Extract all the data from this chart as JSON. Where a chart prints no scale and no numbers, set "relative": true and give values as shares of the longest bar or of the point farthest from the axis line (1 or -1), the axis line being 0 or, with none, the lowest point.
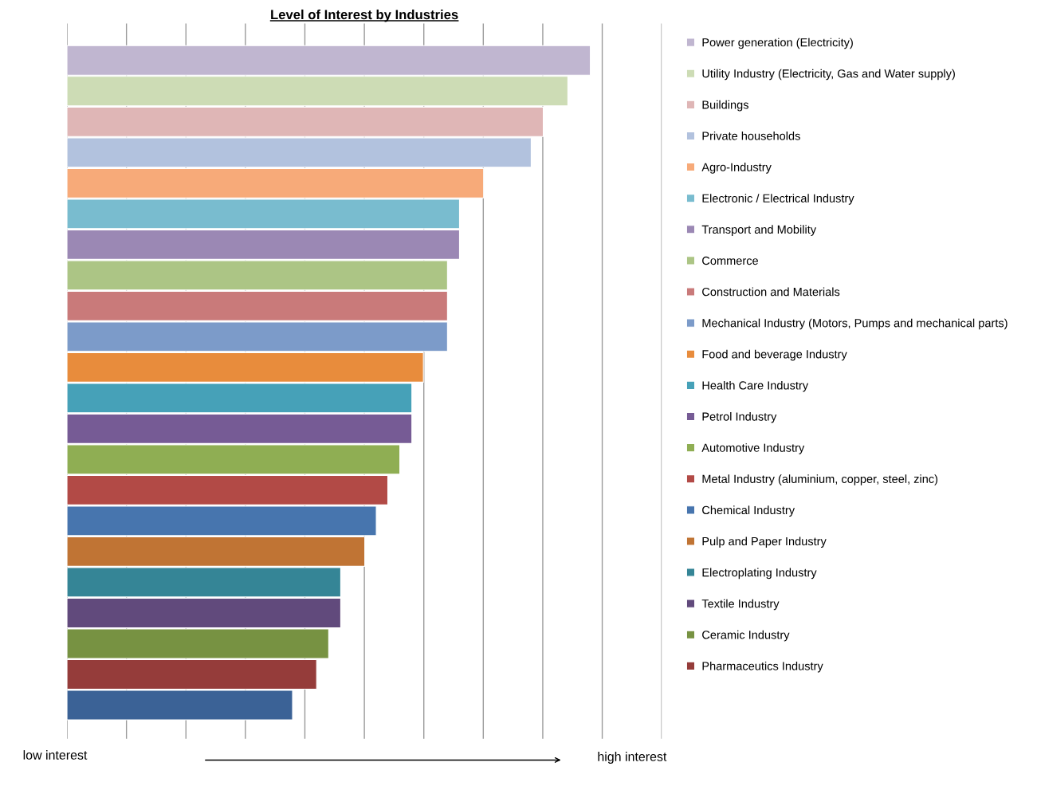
{
  "chart_data": {
    "type": "bar",
    "orientation": "horizontal",
    "relative": true,
    "title": "Level of Interest by Industries",
    "categories": [
      null,
      null,
      null,
      null,
      null,
      null,
      null,
      null,
      null,
      null,
      null,
      null,
      null,
      null,
      null,
      null,
      null,
      null,
      null,
      null,
      null,
      null
    ],
    "series": [
      {
        "name": "Power generation (Electricity)",
        "color": "#c0b6d0",
        "values": [
          1,
          null,
          null,
          null,
          null,
          null,
          null,
          null,
          null,
          null,
          null,
          null,
          null,
          null,
          null,
          null,
          null,
          null,
          null,
          null,
          null,
          null
        ]
      },
      {
        "name": "Utility Industry (Electricity, Gas and Water supply)",
        "color": "#cddcb5",
        "values": [
          null,
          0.957,
          null,
          null,
          null,
          null,
          null,
          null,
          null,
          null,
          null,
          null,
          null,
          null,
          null,
          null,
          null,
          null,
          null,
          null,
          null,
          null
        ]
      },
      {
        "name": "Buildings",
        "color": "#dfb6b6",
        "values": [
          null,
          null,
          0.91,
          null,
          null,
          null,
          null,
          null,
          null,
          null,
          null,
          null,
          null,
          null,
          null,
          null,
          null,
          null,
          null,
          null,
          null,
          null
        ]
      },
      {
        "name": "Private households",
        "color": "#b2c2de",
        "values": [
          null,
          null,
          null,
          0.887,
          null,
          null,
          null,
          null,
          null,
          null,
          null,
          null,
          null,
          null,
          null,
          null,
          null,
          null,
          null,
          null,
          null,
          null
        ]
      },
      {
        "name": "Agro-Industry",
        "color": "#f7aa79",
        "values": [
          null,
          null,
          null,
          null,
          0.796,
          null,
          null,
          null,
          null,
          null,
          null,
          null,
          null,
          null,
          null,
          null,
          null,
          null,
          null,
          null,
          null,
          null
        ]
      },
      {
        "name": "Electronic / Electrical Industry",
        "color": "#79bccf",
        "values": [
          null,
          null,
          null,
          null,
          null,
          0.75,
          null,
          null,
          null,
          null,
          null,
          null,
          null,
          null,
          null,
          null,
          null,
          null,
          null,
          null,
          null,
          null
        ]
      },
      {
        "name": "Transport and Mobility",
        "color": "#9b88b4",
        "values": [
          null,
          null,
          null,
          null,
          null,
          null,
          0.75,
          null,
          null,
          null,
          null,
          null,
          null,
          null,
          null,
          null,
          null,
          null,
          null,
          null,
          null,
          null
        ]
      },
      {
        "name": "Commerce",
        "color": "#acc585",
        "values": [
          null,
          null,
          null,
          null,
          null,
          null,
          null,
          0.727,
          null,
          null,
          null,
          null,
          null,
          null,
          null,
          null,
          null,
          null,
          null,
          null,
          null,
          null
        ]
      },
      {
        "name": "Construction and Materials",
        "color": "#c97a7a",
        "values": [
          null,
          null,
          null,
          null,
          null,
          null,
          null,
          null,
          0.727,
          null,
          null,
          null,
          null,
          null,
          null,
          null,
          null,
          null,
          null,
          null,
          null,
          null
        ]
      },
      {
        "name": "Mechanical Industry (Motors, Pumps and mechanical parts)",
        "color": "#7c9bc9",
        "values": [
          null,
          null,
          null,
          null,
          null,
          null,
          null,
          null,
          null,
          0.727,
          null,
          null,
          null,
          null,
          null,
          null,
          null,
          null,
          null,
          null,
          null,
          null
        ]
      },
      {
        "name": "Food and beverage Industry",
        "color": "#e88c3c",
        "values": [
          null,
          null,
          null,
          null,
          null,
          null,
          null,
          null,
          null,
          null,
          0.681,
          null,
          null,
          null,
          null,
          null,
          null,
          null,
          null,
          null,
          null,
          null
        ]
      },
      {
        "name": "Health Care Industry",
        "color": "#46a1b8",
        "values": [
          null,
          null,
          null,
          null,
          null,
          null,
          null,
          null,
          null,
          null,
          null,
          0.659,
          null,
          null,
          null,
          null,
          null,
          null,
          null,
          null,
          null,
          null
        ]
      },
      {
        "name": "Petrol Industry",
        "color": "#765b95",
        "values": [
          null,
          null,
          null,
          null,
          null,
          null,
          null,
          null,
          null,
          null,
          null,
          null,
          0.659,
          null,
          null,
          null,
          null,
          null,
          null,
          null,
          null,
          null
        ]
      },
      {
        "name": "Automotive Industry",
        "color": "#8fae53",
        "values": [
          null,
          null,
          null,
          null,
          null,
          null,
          null,
          null,
          null,
          null,
          null,
          null,
          null,
          0.636,
          null,
          null,
          null,
          null,
          null,
          null,
          null,
          null
        ]
      },
      {
        "name": "Metal Industry (aluminium, copper, steel, zinc)",
        "color": "#b24a46",
        "values": [
          null,
          null,
          null,
          null,
          null,
          null,
          null,
          null,
          null,
          null,
          null,
          null,
          null,
          null,
          0.613,
          null,
          null,
          null,
          null,
          null,
          null,
          null
        ]
      },
      {
        "name": "Chemical Industry",
        "color": "#4775ae",
        "values": [
          null,
          null,
          null,
          null,
          null,
          null,
          null,
          null,
          null,
          null,
          null,
          null,
          null,
          null,
          null,
          0.591,
          null,
          null,
          null,
          null,
          null,
          null
        ]
      },
      {
        "name": "Pulp and Paper Industry",
        "color": "#c07434",
        "values": [
          null,
          null,
          null,
          null,
          null,
          null,
          null,
          null,
          null,
          null,
          null,
          null,
          null,
          null,
          null,
          null,
          0.569,
          null,
          null,
          null,
          null,
          null
        ]
      },
      {
        "name": "Electroplating Industry",
        "color": "#358596",
        "values": [
          null,
          null,
          null,
          null,
          null,
          null,
          null,
          null,
          null,
          null,
          null,
          null,
          null,
          null,
          null,
          null,
          null,
          0.523,
          null,
          null,
          null,
          null
        ]
      },
      {
        "name": "Textile Industry",
        "color": "#614a7c",
        "values": [
          null,
          null,
          null,
          null,
          null,
          null,
          null,
          null,
          null,
          null,
          null,
          null,
          null,
          null,
          null,
          null,
          null,
          null,
          0.523,
          null,
          null,
          null
        ]
      },
      {
        "name": "Ceramic Industry",
        "color": "#779242",
        "values": [
          null,
          null,
          null,
          null,
          null,
          null,
          null,
          null,
          null,
          null,
          null,
          null,
          null,
          null,
          null,
          null,
          null,
          null,
          null,
          0.5,
          null,
          null
        ]
      },
      {
        "name": "Pharmaceutics Industry",
        "color": "#953c3a",
        "values": [
          null,
          null,
          null,
          null,
          null,
          null,
          null,
          null,
          null,
          null,
          null,
          null,
          null,
          null,
          null,
          null,
          null,
          null,
          null,
          null,
          0.477,
          null
        ]
      },
      {
        "color": "#3b6296",
        "values": [
          null,
          null,
          null,
          null,
          null,
          null,
          null,
          null,
          null,
          null,
          null,
          null,
          null,
          null,
          null,
          null,
          null,
          null,
          null,
          null,
          null,
          0.431
        ]
      }
    ],
    "stacked": true,
    "grid": "x",
    "legend": "right",
    "annotations": [
      "low interest",
      "high interest"
    ]
  }
}
